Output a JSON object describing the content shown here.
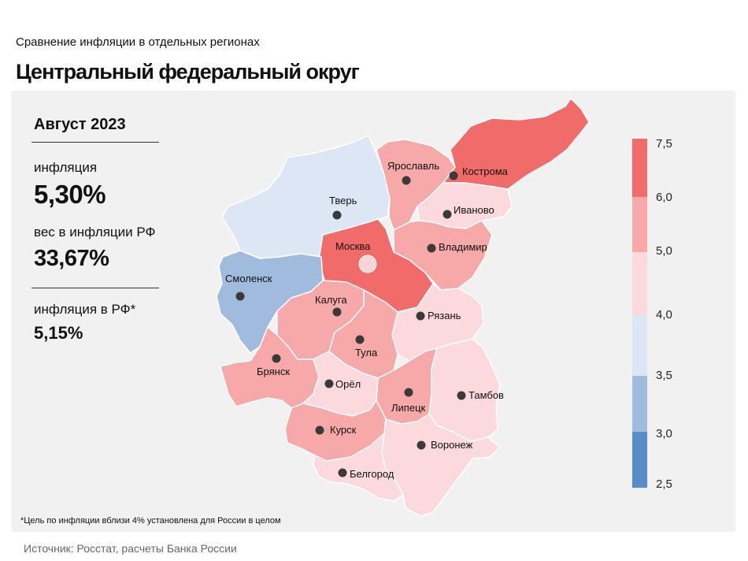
{
  "header": {
    "subtitle": "Сравнение  инфляции  в отдельных  регионах",
    "title": "Центральный федеральный округ"
  },
  "stats": {
    "period": "Август 2023",
    "inflation_label": "инфляция",
    "inflation_value": "5,30%",
    "weight_label": "вес в инфляции  РФ",
    "weight_value": "33,67%",
    "rf_label": "инфляция  в РФ*",
    "rf_value": "5,15%"
  },
  "legend": {
    "ticks": [
      "7,5",
      "6,0",
      "5,0",
      "4,0",
      "3,5",
      "3,0",
      "2,5"
    ],
    "colors": [
      "#f26b6b",
      "#f7a8a8",
      "#fbd9dc",
      "#dce6f4",
      "#a1bbdf",
      "#5a8cc8"
    ]
  },
  "regions": {
    "tver": "Тверь",
    "yaroslavl": "Ярославль",
    "kostroma": "Кострома",
    "ivanovo": "Иваново",
    "moscow": "Москва",
    "vladimir": "Владимир",
    "smolensk": "Смоленск",
    "kaluga": "Калуга",
    "ryazan": "Рязань",
    "tula": "Тула",
    "bryansk": "Брянск",
    "orel": "Орёл",
    "lipetsk": "Липецк",
    "tambov": "Тамбов",
    "kursk": "Курск",
    "voronezh": "Воронеж",
    "belgorod": "Белгород"
  },
  "footnote": "*Цель по инфляции вблизи 4% установлена для России в целом",
  "source": "Источник: Росстат, расчеты Банка России"
}
